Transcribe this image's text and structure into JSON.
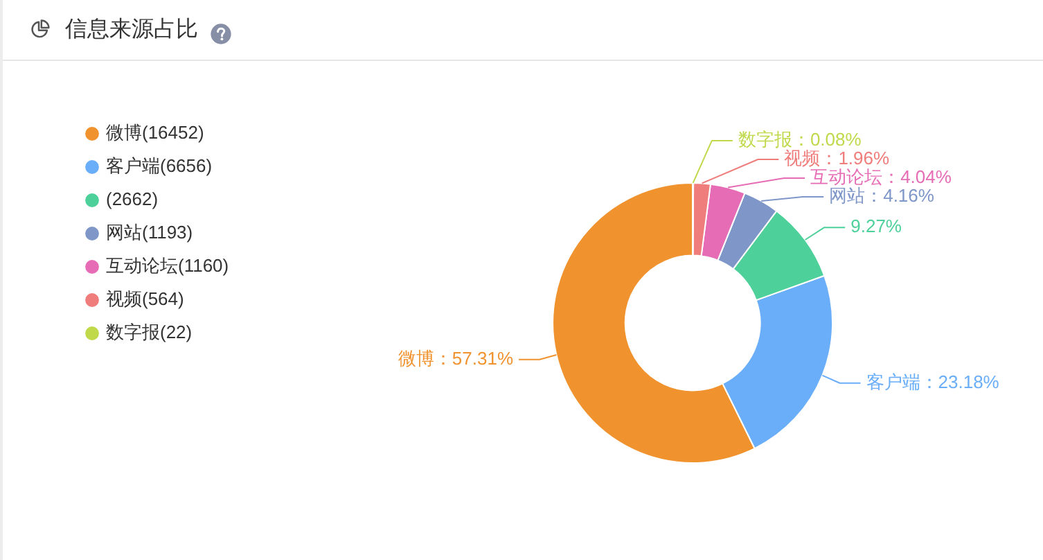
{
  "chart_data": {
    "type": "donut",
    "title": "信息来源占比",
    "categories": [
      "微博(16452)",
      "客户端(6656)",
      "(2662)",
      "网站(1193)",
      "互动论坛(1160)",
      "视频(564)",
      "数字报(22)"
    ],
    "values": [
      57.31,
      23.18,
      9.27,
      4.16,
      4.04,
      1.96,
      0.08
    ],
    "colors": [
      "#f0932e",
      "#6aaef9",
      "#4dd09a",
      "#7e96c8",
      "#e66db5",
      "#ef7d7b",
      "#bfd94b"
    ],
    "value_labels": [
      "微博：57.31%",
      "客户端：23.18%",
      "9.27%",
      "网站：4.16%",
      "互动论坛：4.04%",
      "视频：1.96%",
      "数字报：0.08%"
    ],
    "legend": "top left"
  }
}
